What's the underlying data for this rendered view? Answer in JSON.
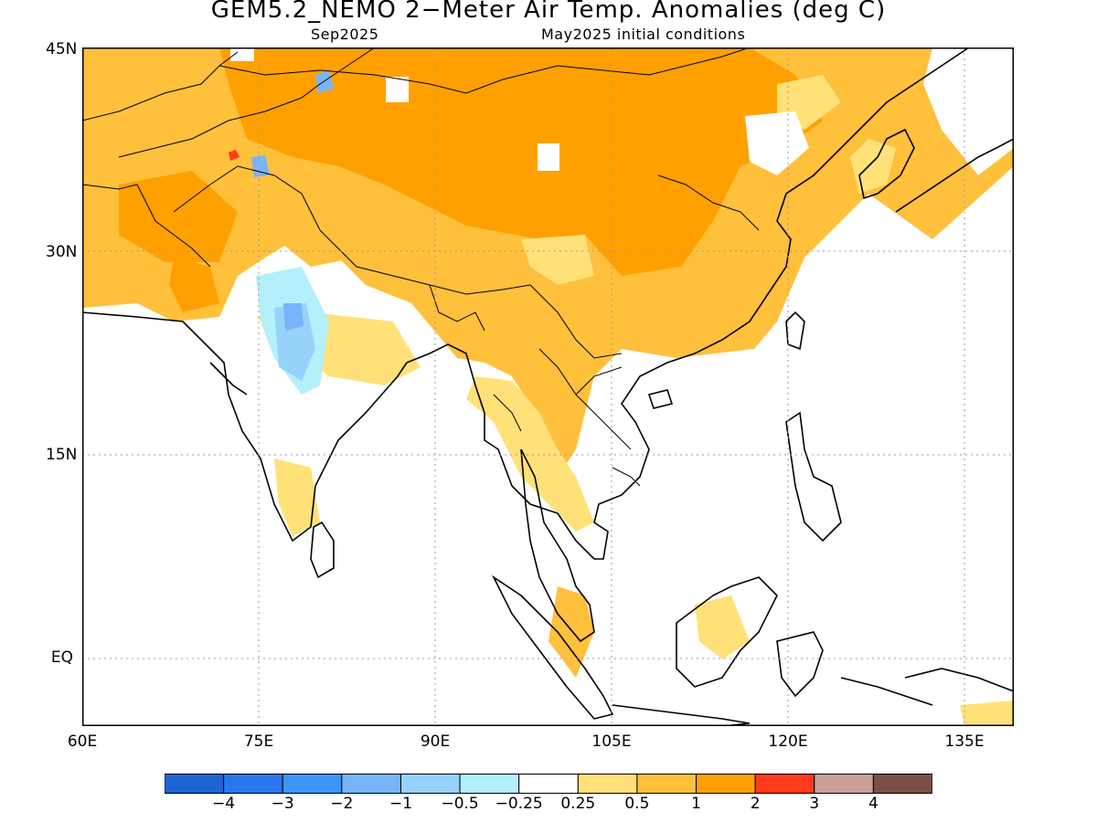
{
  "title": "GEM5.2_NEMO 2−Meter Air Temp. Anomalies (deg C)",
  "subtitle_left": "Sep2025",
  "subtitle_right": "May2025 initial conditions",
  "lat_labels": [
    "45N",
    "30N",
    "15N",
    "EQ"
  ],
  "lon_labels": [
    "60E",
    "75E",
    "90E",
    "105E",
    "120E",
    "135E"
  ],
  "legend": {
    "colors": [
      "#1e64d2",
      "#2878eb",
      "#3c96f5",
      "#78b4fa",
      "#96d2fa",
      "#b4f0fa",
      "#ffffff",
      "#ffe178",
      "#ffc03c",
      "#ffa000",
      "#ff3c1e",
      "#c8a096",
      "#785046"
    ],
    "labels": [
      "−4",
      "−3",
      "−2",
      "−1",
      "−0.5",
      "−0.25",
      "0.25",
      "0.5",
      "1",
      "2",
      "3",
      "4"
    ]
  }
}
